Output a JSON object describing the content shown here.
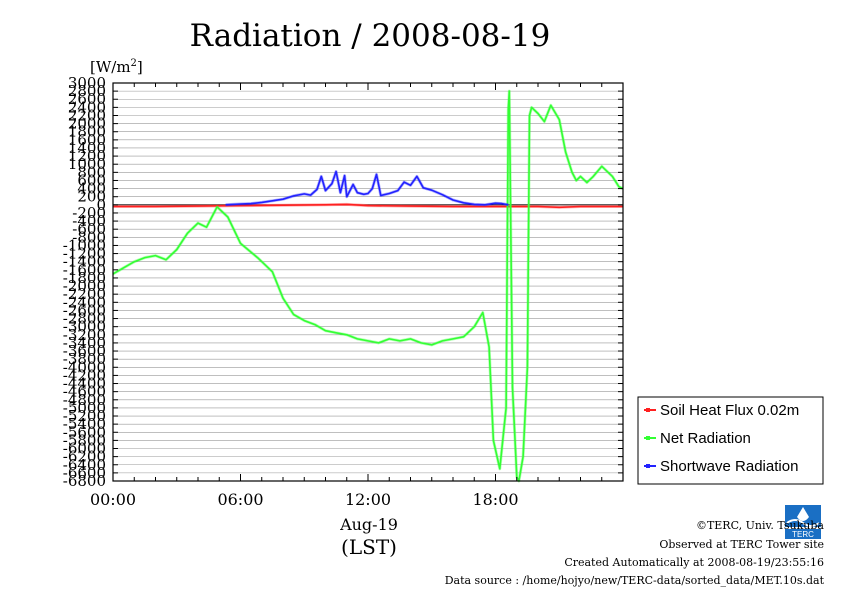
{
  "chart_data": {
    "type": "line",
    "title": "Radiation / 2008-08-19",
    "ylabel_unit": "[W/m",
    "ylabel_sup": "2",
    "ylabel_close": "]",
    "xlabel_date": "Aug-19",
    "xlabel_zone": "(LST)",
    "ylim": [
      -6800,
      3000
    ],
    "xlim_hours": [
      0,
      24
    ],
    "x_ticks": [
      {
        "hour": 0,
        "label": "00:00"
      },
      {
        "hour": 6,
        "label": "06:00"
      },
      {
        "hour": 12,
        "label": "12:00"
      },
      {
        "hour": 18,
        "label": "18:00"
      }
    ],
    "y_tick_labels": [
      "3000",
      "2800",
      "2600",
      "2400",
      "2200",
      "2000",
      "1800",
      "1600",
      "1400",
      "1200",
      "1000",
      "800",
      "600",
      "400",
      "200",
      "0",
      "-200",
      "-400",
      "-600",
      "-800",
      "-1000",
      "-1200",
      "-1400",
      "-1600",
      "-1800",
      "-2000",
      "-2200",
      "-2400",
      "-2600",
      "-2800",
      "-3000",
      "-3200",
      "-3400",
      "-3600",
      "-3800",
      "-4000",
      "-4200",
      "-4400",
      "-4600",
      "-4800",
      "-5000",
      "-5200",
      "-5400",
      "-5600",
      "-5800",
      "-6000",
      "-6200",
      "-6400",
      "-6600",
      "-6800"
    ],
    "grid": true,
    "legend_position": "bottom-right outside",
    "series": [
      {
        "name": "Soil Heat Flux 0.02m",
        "color": "#ff2020",
        "points": [
          [
            0,
            -40
          ],
          [
            2,
            -40
          ],
          [
            4,
            -30
          ],
          [
            6,
            -20
          ],
          [
            8,
            -10
          ],
          [
            10,
            0
          ],
          [
            11,
            10
          ],
          [
            12,
            -20
          ],
          [
            14,
            -30
          ],
          [
            16,
            -40
          ],
          [
            18,
            -40
          ],
          [
            20,
            -40
          ],
          [
            21,
            -60
          ],
          [
            22,
            -40
          ],
          [
            24,
            -40
          ]
        ]
      },
      {
        "name": "Net Radiation",
        "color": "#33ff33",
        "points": [
          [
            0,
            -1700
          ],
          [
            0.5,
            -1550
          ],
          [
            1,
            -1400
          ],
          [
            1.5,
            -1300
          ],
          [
            2,
            -1250
          ],
          [
            2.5,
            -1350
          ],
          [
            3,
            -1100
          ],
          [
            3.5,
            -700
          ],
          [
            4,
            -450
          ],
          [
            4.4,
            -550
          ],
          [
            4.9,
            -50
          ],
          [
            5.4,
            -300
          ],
          [
            6,
            -950
          ],
          [
            6.8,
            -1300
          ],
          [
            7.5,
            -1650
          ],
          [
            8,
            -2300
          ],
          [
            8.5,
            -2700
          ],
          [
            9,
            -2850
          ],
          [
            9.5,
            -2950
          ],
          [
            10,
            -3100
          ],
          [
            10.5,
            -3150
          ],
          [
            11,
            -3200
          ],
          [
            11.5,
            -3300
          ],
          [
            12,
            -3350
          ],
          [
            12.5,
            -3400
          ],
          [
            13,
            -3300
          ],
          [
            13.5,
            -3350
          ],
          [
            14,
            -3300
          ],
          [
            14.5,
            -3400
          ],
          [
            15,
            -3450
          ],
          [
            15.5,
            -3350
          ],
          [
            16,
            -3300
          ],
          [
            16.5,
            -3250
          ],
          [
            17,
            -3000
          ],
          [
            17.4,
            -2650
          ],
          [
            17.7,
            -3500
          ],
          [
            17.9,
            -5800
          ],
          [
            18.2,
            -6500
          ],
          [
            18.5,
            -5000
          ],
          [
            18.6,
            2350
          ],
          [
            18.65,
            2800
          ],
          [
            18.8,
            -4500
          ],
          [
            19,
            -6700
          ],
          [
            19.1,
            -6800
          ],
          [
            19.3,
            -6200
          ],
          [
            19.5,
            -4000
          ],
          [
            19.6,
            2200
          ],
          [
            19.7,
            2400
          ],
          [
            20,
            2250
          ],
          [
            20.3,
            2050
          ],
          [
            20.6,
            2450
          ],
          [
            21,
            2100
          ],
          [
            21.3,
            1300
          ],
          [
            21.6,
            800
          ],
          [
            21.8,
            600
          ],
          [
            22,
            700
          ],
          [
            22.3,
            550
          ],
          [
            22.6,
            700
          ],
          [
            23,
            950
          ],
          [
            23.5,
            700
          ],
          [
            23.8,
            450
          ],
          [
            24,
            400
          ]
        ]
      },
      {
        "name": "Shortwave Radiation",
        "color": "#2222ff",
        "points": [
          [
            5.3,
            0
          ],
          [
            6,
            20
          ],
          [
            6.5,
            30
          ],
          [
            7,
            60
          ],
          [
            7.5,
            100
          ],
          [
            8,
            140
          ],
          [
            8.5,
            220
          ],
          [
            9,
            270
          ],
          [
            9.3,
            240
          ],
          [
            9.6,
            380
          ],
          [
            9.8,
            700
          ],
          [
            10,
            350
          ],
          [
            10.3,
            520
          ],
          [
            10.5,
            820
          ],
          [
            10.7,
            300
          ],
          [
            10.9,
            720
          ],
          [
            11,
            200
          ],
          [
            11.3,
            500
          ],
          [
            11.5,
            300
          ],
          [
            11.8,
            260
          ],
          [
            12,
            280
          ],
          [
            12.2,
            400
          ],
          [
            12.4,
            750
          ],
          [
            12.6,
            230
          ],
          [
            13,
            280
          ],
          [
            13.4,
            350
          ],
          [
            13.7,
            560
          ],
          [
            14,
            480
          ],
          [
            14.3,
            700
          ],
          [
            14.6,
            420
          ],
          [
            15,
            360
          ],
          [
            15.5,
            250
          ],
          [
            16,
            120
          ],
          [
            16.5,
            50
          ],
          [
            17,
            10
          ],
          [
            17.5,
            0
          ],
          [
            18,
            40
          ],
          [
            18.3,
            30
          ],
          [
            18.6,
            0
          ]
        ]
      }
    ]
  },
  "footer": {
    "copyright": "©TERC, Univ. Tsukuba",
    "observed": "Observed at TERC Tower site",
    "created": "Created Automatically at 2008-08-19/23:55:16",
    "source": "Data source : /home/hojyo/new/TERC-data/sorted_data/MET.10s.dat"
  },
  "logo": {
    "label": "TERC",
    "color": "#1a6fc4"
  }
}
